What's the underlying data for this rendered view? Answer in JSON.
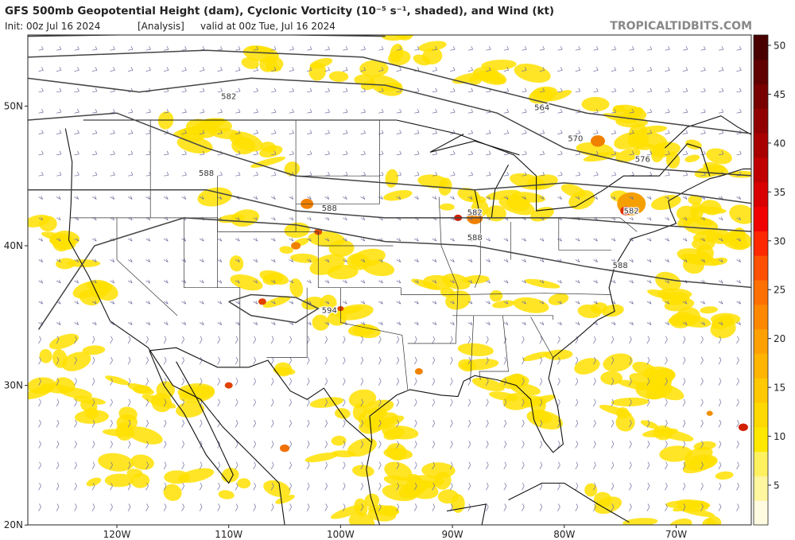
{
  "header": {
    "title": "GFS 500mb Geopotential Height (dam), Cyclonic Vorticity (10⁻⁵ s⁻¹, shaded), and Wind (kt)",
    "init": "Init: 00z Jul 16 2024",
    "run": "[Analysis]",
    "valid": "valid at 00z Tue, Jul 16 2024",
    "credit": "TROPICALTIDBITS.COM"
  },
  "map": {
    "lat_labels": [
      "50N",
      "40N",
      "30N",
      "20N"
    ],
    "lon_labels": [
      "120W",
      "110W",
      "100W",
      "90W",
      "80W",
      "70W"
    ],
    "contour_labels": [
      "582",
      "588",
      "588",
      "594",
      "564",
      "570",
      "576",
      "582",
      "582",
      "588",
      "588"
    ]
  },
  "colorbar": {
    "ticks": [
      5,
      10,
      15,
      20,
      25,
      30,
      35,
      40,
      45,
      50
    ]
  }
}
